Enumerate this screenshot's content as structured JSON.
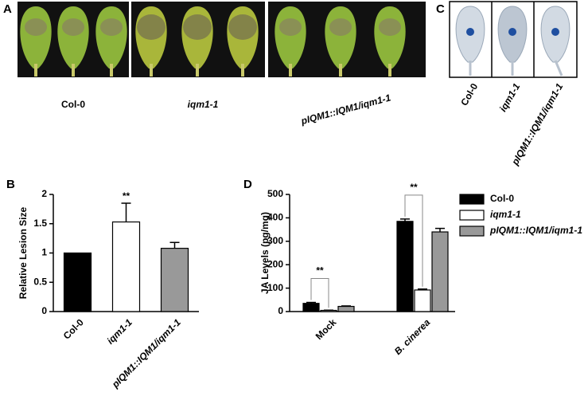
{
  "panels": {
    "A": {
      "letter": "A",
      "labels": [
        "Col-0",
        "iqm1-1",
        "pIQM1::IQM1/iqm1-1"
      ]
    },
    "C": {
      "letter": "C",
      "labels": [
        "Col-0",
        "iqm1-1",
        "pIQM1::IQM1/iqm1-1"
      ]
    }
  },
  "chart_data": [
    {
      "type": "bar",
      "letter": "B",
      "ylabel": "Relative Lesion Size",
      "categories": [
        "Col-0",
        "iqm1-1",
        "pIQM1::IQM1/iqm1-1"
      ],
      "values": [
        1,
        1.53,
        1.08
      ],
      "errors": [
        null,
        0.32,
        0.1
      ],
      "colors": [
        "#000000",
        "#ffffff",
        "#999999"
      ],
      "annotations": [
        null,
        "**",
        null
      ],
      "ylim": [
        0,
        2
      ],
      "yticks": [
        0,
        0.5,
        1,
        1.5,
        2
      ]
    },
    {
      "type": "grouped_bar",
      "letter": "D",
      "ylabel": "JA Levels (pg/mg)",
      "categories": [
        "Mock",
        "B. cinerea"
      ],
      "series": [
        {
          "name": "Col-0",
          "color": "#000000",
          "values": [
            35,
            385
          ],
          "errors": [
            4,
            10
          ]
        },
        {
          "name": "iqm1-1",
          "color": "#ffffff",
          "values": [
            5,
            92
          ],
          "errors": [
            1,
            4
          ]
        },
        {
          "name": "pIQM1::IQM1/iqm1-1",
          "color": "#999999",
          "values": [
            22,
            340
          ],
          "errors": [
            2,
            15
          ]
        }
      ],
      "annotations": [
        "**",
        "**"
      ],
      "ylim": [
        0,
        500
      ],
      "yticks": [
        0,
        100,
        200,
        300,
        400,
        500
      ]
    }
  ]
}
